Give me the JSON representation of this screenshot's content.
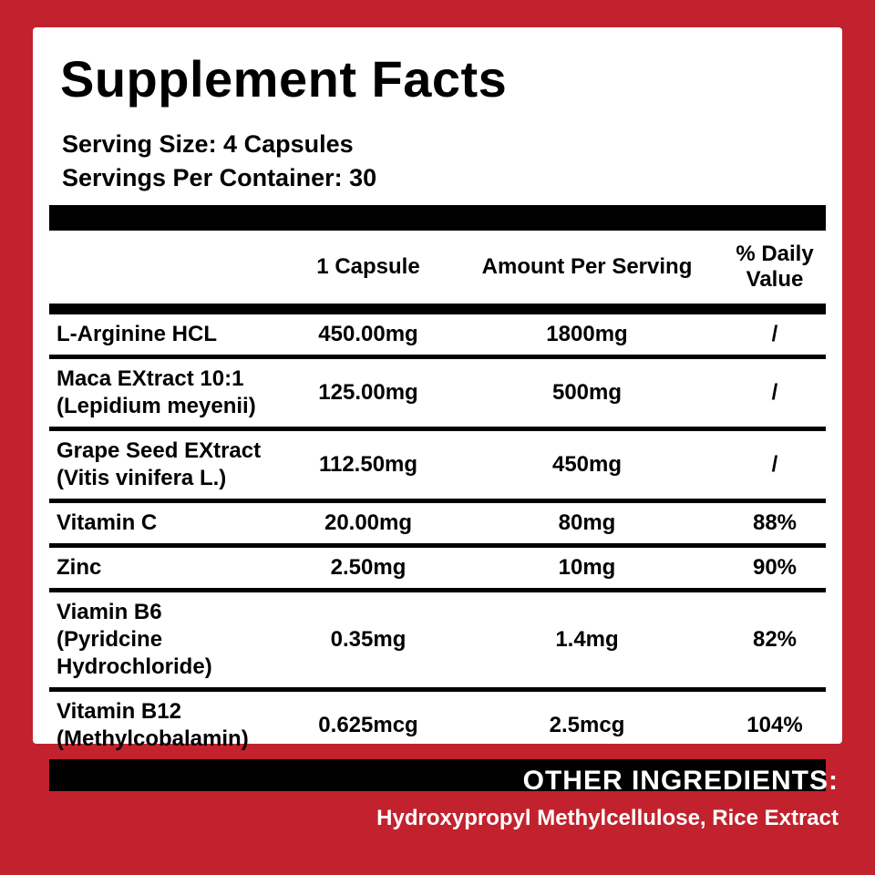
{
  "label": {
    "title": "Supplement Facts",
    "serving_size": "Serving Size: 4 Capsules",
    "servings_per_container": "Servings Per Container: 30",
    "columns": [
      "1 Capsule",
      "Amount Per Serving",
      "% Daily Value"
    ],
    "rows": [
      {
        "name1": "L-Arginine HCL",
        "name2": "",
        "capsule": "450.00mg",
        "per_serving": "1800mg",
        "daily": "/"
      },
      {
        "name1": "Maca EXtract 10:1",
        "name2": "(Lepidium meyenii)",
        "capsule": "125.00mg",
        "per_serving": "500mg",
        "daily": "/"
      },
      {
        "name1": "Grape Seed EXtract",
        "name2": "(Vitis vinifera L.)",
        "capsule": "112.50mg",
        "per_serving": "450mg",
        "daily": "/"
      },
      {
        "name1": "Vitamin C",
        "name2": "",
        "capsule": "20.00mg",
        "per_serving": "80mg",
        "daily": "88%"
      },
      {
        "name1": "Zinc",
        "name2": "",
        "capsule": "2.50mg",
        "per_serving": "10mg",
        "daily": "90%"
      },
      {
        "name1": "Viamin B6",
        "name2": "(Pyridcine Hydrochloride)",
        "capsule": "0.35mg",
        "per_serving": "1.4mg",
        "daily": "82%"
      },
      {
        "name1": "Vitamin B12",
        "name2": "(Methylcobalamin)",
        "capsule": "0.625mcg",
        "per_serving": "2.5mcg",
        "daily": "104%"
      }
    ],
    "other_ingredients_heading": "OTHER  INGREDIENTS:",
    "other_ingredients_text": "Hydroxypropyl Methylcellulose, Rice Extract"
  },
  "colors": {
    "background_red": "#c2222d",
    "panel": "#ffffff",
    "text": "#000000",
    "footer_text": "#ffffff"
  }
}
